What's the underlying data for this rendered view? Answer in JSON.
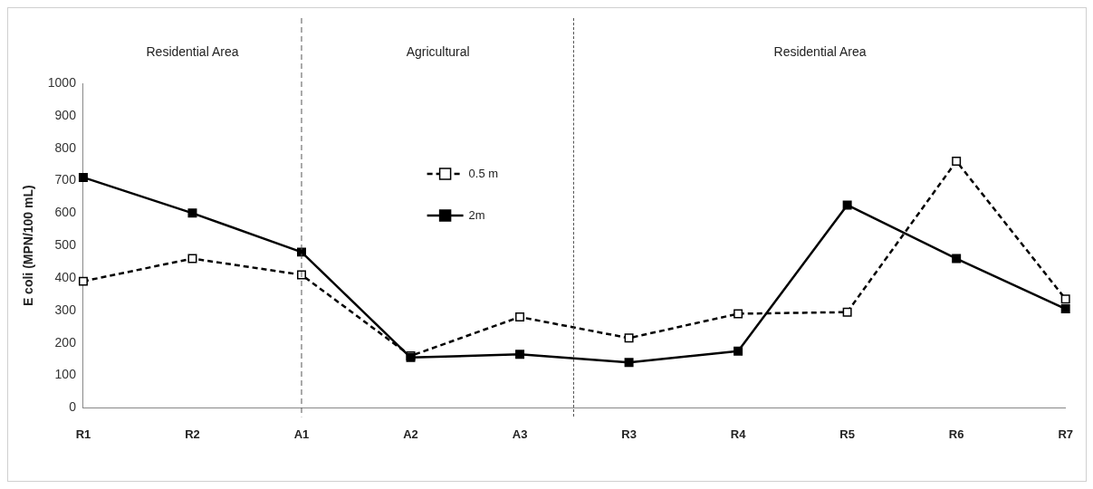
{
  "chart_data": {
    "type": "line",
    "ylabel": "E coli (MPN/100 mL)",
    "categories": [
      "R1",
      "R2",
      "A1",
      "A2",
      "A3",
      "R3",
      "R4",
      "R5",
      "R6",
      "R7"
    ],
    "series": [
      {
        "name": "0.5 m",
        "color": "#000000",
        "line_style": "dashed",
        "values": [
          390,
          460,
          410,
          160,
          280,
          215,
          290,
          295,
          760,
          335
        ]
      },
      {
        "name": "2m",
        "color": "#000000",
        "line_style": "solid",
        "values": [
          710,
          600,
          480,
          155,
          165,
          140,
          175,
          625,
          460,
          305
        ]
      }
    ],
    "ylim": [
      0,
      1000
    ],
    "yticks": [
      0,
      100,
      200,
      300,
      400,
      500,
      600,
      700,
      800,
      900,
      1000
    ],
    "ref_lines": [
      {
        "axis": "x",
        "value": "A1",
        "color": "#555555",
        "line_style": "dashed"
      }
    ],
    "annotations": [
      "Residential Area",
      "Agricultural",
      "Residential Area"
    ],
    "marker": "square",
    "grid": false,
    "legend": "top"
  }
}
